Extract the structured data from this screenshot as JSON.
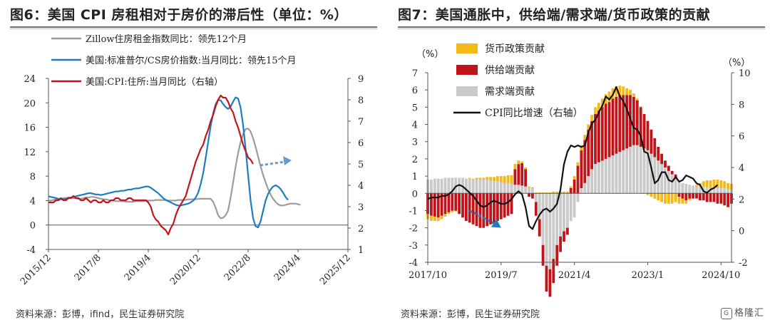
{
  "left": {
    "title": "图6：美国 CPI 房租相对于房价的滞后性（单位：%）",
    "source": "资料来源：彭博，ifind，民生证券研究院",
    "chart_data": {
      "type": "line",
      "xtick_labels": [
        "2015/12",
        "2017/8",
        "2019/4",
        "2020/12",
        "2022/8",
        "2024/4",
        "2025/12"
      ],
      "x_range": [
        "2015/12",
        "2025/12"
      ],
      "y_left": {
        "ticks": [
          -4,
          0,
          4,
          8,
          12,
          16,
          20,
          24
        ],
        "range": [
          -4,
          24
        ]
      },
      "y_right": {
        "ticks": [
          1,
          2,
          3,
          4,
          5,
          6,
          7,
          8,
          9
        ],
        "range": [
          1,
          9
        ]
      },
      "series": [
        {
          "name": "Zillow住房租金指数同比：领先12个月",
          "color": "#9c9c9c",
          "axis": "left",
          "start": "2015/12",
          "values": [
            4.0,
            4.0,
            4.1,
            4.2,
            4.3,
            4.3,
            4.4,
            4.4,
            4.5,
            4.5,
            4.4,
            4.4,
            4.3,
            4.3,
            4.4,
            4.5,
            4.5,
            4.6,
            4.6,
            4.5,
            4.4,
            4.3,
            4.2,
            4.2,
            4.1,
            4.0,
            4.0,
            3.9,
            3.9,
            3.9,
            3.9,
            3.8,
            3.8,
            3.8,
            3.8,
            3.9,
            3.9,
            3.9,
            3.9,
            4.0,
            4.0,
            4.0,
            4.0,
            4.1,
            4.1,
            4.1,
            4.1,
            4.1,
            4.0,
            4.0,
            4.0,
            4.0,
            4.1,
            4.1,
            4.1,
            4.1,
            4.2,
            4.2,
            4.2,
            4.2,
            4.3,
            4.3,
            4.3,
            4.3,
            4.3,
            4.3,
            3.8,
            2.8,
            1.6,
            1.1,
            1.2,
            1.6,
            2.4,
            4.5,
            7.0,
            9.6,
            11.8,
            13.6,
            14.9,
            15.7,
            15.8,
            15.3,
            14.2,
            12.8,
            11.2,
            9.6,
            8.2,
            7.0,
            5.9,
            5.0,
            4.3,
            3.8,
            3.4,
            3.2,
            3.2,
            3.3,
            3.4,
            3.5,
            3.5,
            3.5,
            3.4,
            3.3
          ]
        },
        {
          "name": "美国:标准普尔/CS房价指数:当月同比：领先15个月",
          "color": "#1f7bc2",
          "axis": "left",
          "start": "2015/12",
          "values": [
            4.7,
            4.6,
            4.5,
            4.4,
            4.3,
            4.2,
            4.2,
            4.3,
            4.4,
            4.5,
            4.6,
            4.7,
            4.8,
            4.9,
            5.0,
            5.1,
            5.2,
            5.2,
            5.1,
            5.0,
            5.0,
            4.9,
            5.0,
            5.1,
            5.2,
            5.3,
            5.4,
            5.5,
            5.5,
            5.6,
            5.6,
            5.7,
            5.8,
            5.8,
            5.9,
            6.0,
            6.0,
            6.1,
            6.2,
            6.3,
            6.3,
            6.1,
            5.8,
            5.5,
            5.2,
            4.8,
            4.4,
            4.1,
            3.9,
            3.7,
            3.5,
            3.3,
            3.2,
            3.2,
            3.3,
            3.4,
            3.5,
            3.7,
            4.0,
            4.5,
            5.3,
            6.7,
            8.5,
            11.0,
            13.6,
            16.2,
            18.3,
            19.8,
            20.5,
            20.4,
            19.8,
            19.3,
            19.0,
            19.4,
            20.2,
            20.9,
            20.7,
            19.2,
            16.3,
            12.5,
            8.2,
            4.0,
            1.1,
            -0.2,
            -0.4,
            0.6,
            2.3,
            4.0,
            5.1,
            5.8,
            6.3,
            6.5,
            6.3,
            5.9,
            5.3,
            4.6,
            4.1
          ]
        },
        {
          "name": "美国:CPI:住所:当月同比（右轴）",
          "color": "#c0141b",
          "axis": "right",
          "start": "2015/12",
          "values": [
            3.2,
            3.2,
            3.2,
            3.3,
            3.3,
            3.4,
            3.3,
            3.3,
            3.4,
            3.4,
            3.5,
            3.4,
            3.4,
            3.3,
            3.3,
            3.4,
            3.3,
            3.2,
            3.3,
            3.3,
            3.2,
            3.2,
            3.3,
            3.2,
            3.2,
            3.3,
            3.3,
            3.4,
            3.4,
            3.3,
            3.3,
            3.3,
            3.4,
            3.4,
            3.3,
            3.3,
            3.3,
            3.3,
            3.3,
            3.3,
            3.2,
            3.0,
            2.6,
            2.4,
            2.3,
            2.1,
            2.0,
            1.9,
            1.7,
            2.0,
            2.2,
            2.6,
            2.9,
            3.1,
            3.3,
            3.5,
            3.9,
            4.3,
            4.7,
            5.1,
            5.4,
            5.7,
            5.9,
            6.3,
            6.6,
            7.0,
            7.3,
            7.7,
            8.0,
            8.2,
            8.1,
            8.1,
            7.9,
            7.6,
            7.4,
            7.0,
            6.7,
            6.3,
            5.9,
            5.6,
            5.3,
            5.2,
            5.0
          ],
          "projection_note_color": "#6a9bd0"
        }
      ],
      "legend_position": "top-left"
    }
  },
  "right": {
    "title": "图7：美国通胀中，供给端/需求端/货币政策的贡献",
    "source": "资料来源：彭博，民生证券研究院",
    "logo_text": "格隆汇",
    "chart_data": {
      "type": "bar",
      "xtick_labels": [
        "2017/10",
        "2019/7",
        "2021/4",
        "2023/1",
        "2024/10"
      ],
      "x_range": [
        "2017/10",
        "2025/1"
      ],
      "y_left": {
        "unit_label": "（%）",
        "ticks": [
          -4,
          -3,
          -2,
          -1,
          0,
          1,
          2,
          3,
          4,
          5,
          6,
          7
        ],
        "range": [
          -4,
          7
        ]
      },
      "y_right": {
        "unit_label": "（%）",
        "ticks": [
          -2,
          0,
          2,
          4,
          6,
          8,
          10
        ],
        "range": [
          -2,
          10
        ]
      },
      "legend": [
        {
          "name": "货币政策贡献",
          "color": "#f4b914",
          "kind": "box"
        },
        {
          "name": "供给端贡献",
          "color": "#c0141b",
          "kind": "box"
        },
        {
          "name": "需求端贡献",
          "color": "#c9c9c9",
          "kind": "box"
        },
        {
          "name": "CPI同比增速（右轴）",
          "color": "#111111",
          "kind": "line"
        }
      ],
      "start": "2017/10",
      "demand": [
        0.8,
        0.8,
        0.85,
        0.85,
        0.85,
        0.9,
        0.9,
        0.9,
        0.9,
        0.9,
        0.9,
        0.85,
        0.85,
        0.8,
        0.8,
        0.8,
        0.8,
        0.8,
        0.75,
        0.7,
        0.7,
        0.65,
        0.6,
        0.6,
        0.55,
        0.5,
        0.5,
        0.45,
        0.4,
        0.35,
        0.3,
        -0.5,
        -1.5,
        -3.0,
        -4.2,
        -4.4,
        -3.8,
        -3.0,
        -2.5,
        -2.2,
        -2.0,
        -1.6,
        -1.4,
        -0.5,
        0.3,
        0.6,
        1.0,
        1.4,
        1.7,
        1.8,
        1.9,
        2.0,
        2.1,
        2.2,
        2.3,
        2.4,
        2.5,
        2.6,
        2.7,
        2.8,
        2.8,
        2.7,
        2.6,
        2.5,
        2.3,
        2.1,
        1.9,
        1.7,
        1.5,
        1.3,
        1.1,
        0.9,
        0.75,
        0.6,
        0.55,
        0.5,
        0.45,
        0.4,
        0.4,
        0.4,
        0.35,
        0.3,
        0.3,
        0.3,
        0.3,
        0.3,
        0.25,
        0.25
      ],
      "supply": [
        -1.2,
        -1.3,
        -1.35,
        -1.4,
        -1.3,
        -1.2,
        -1.1,
        -1.0,
        -1.0,
        -1.2,
        -1.4,
        -1.6,
        -1.7,
        -1.8,
        -1.9,
        -2.0,
        -2.0,
        -1.9,
        -1.8,
        -1.7,
        -1.6,
        -1.5,
        -1.4,
        -1.3,
        -1.2,
        0.9,
        1.2,
        1.3,
        1.0,
        -0.2,
        -0.3,
        -0.8,
        -1.0,
        -1.2,
        -1.5,
        -1.6,
        -1.4,
        -1.2,
        -0.9,
        -0.6,
        -0.4,
        0.3,
        0.8,
        1.6,
        2.2,
        2.5,
        2.7,
        2.8,
        2.9,
        3.0,
        3.1,
        3.2,
        3.2,
        3.3,
        3.3,
        3.3,
        3.2,
        3.1,
        3.0,
        2.8,
        2.6,
        2.3,
        2.0,
        1.7,
        1.4,
        1.1,
        0.8,
        0.6,
        0.4,
        0.3,
        0.2,
        0.2,
        -0.2,
        -0.3,
        -0.4,
        -0.3,
        -0.3,
        -0.3,
        -0.4,
        -0.4,
        -0.5,
        -0.5,
        -0.5,
        -0.6,
        -0.6,
        -0.7,
        -0.8,
        -0.6
      ],
      "monetary": [
        -0.3,
        -0.3,
        -0.25,
        -0.2,
        -0.2,
        -0.15,
        -0.1,
        -0.1,
        -0.05,
        0.0,
        0.0,
        0.0,
        0.05,
        0.05,
        0.1,
        0.1,
        0.1,
        0.15,
        0.2,
        0.25,
        0.3,
        0.35,
        0.4,
        0.45,
        0.5,
        0.3,
        0.2,
        0.1,
        0.1,
        0.05,
        0.05,
        0.05,
        0.05,
        0.05,
        0.05,
        0.05,
        0.1,
        0.1,
        0.1,
        0.1,
        0.1,
        0.1,
        0.2,
        0.2,
        0.3,
        0.3,
        0.3,
        0.35,
        0.4,
        0.45,
        0.5,
        0.55,
        0.6,
        0.6,
        0.6,
        0.55,
        0.5,
        0.4,
        0.3,
        0.2,
        0.1,
        0.05,
        0.0,
        -0.1,
        -0.2,
        -0.3,
        -0.4,
        -0.5,
        -0.6,
        -0.6,
        -0.6,
        -0.5,
        -0.4,
        -0.3,
        -0.2,
        -0.1,
        0.0,
        0.1,
        0.2,
        0.3,
        0.4,
        0.45,
        0.5,
        0.5,
        0.45,
        0.4,
        0.35,
        0.3
      ],
      "cpi": [
        2.0,
        2.1,
        2.1,
        2.1,
        2.2,
        2.2,
        2.3,
        2.5,
        2.8,
        2.9,
        2.8,
        2.6,
        2.4,
        2.2,
        1.9,
        1.6,
        1.5,
        1.6,
        1.8,
        1.9,
        1.8,
        1.7,
        1.7,
        1.8,
        2.0,
        2.3,
        2.5,
        2.3,
        1.5,
        0.3,
        0.1,
        0.6,
        1.0,
        1.3,
        1.4,
        1.2,
        1.4,
        1.7,
        2.6,
        4.2,
        5.0,
        5.4,
        5.3,
        5.4,
        5.3,
        5.4,
        6.2,
        6.8,
        7.0,
        7.5,
        7.9,
        8.5,
        8.3,
        8.6,
        9.1,
        8.5,
        8.2,
        7.7,
        7.1,
        6.5,
        6.4,
        6.0,
        5.0,
        4.9,
        4.0,
        3.0,
        3.2,
        3.7,
        3.7,
        3.2,
        3.1,
        3.4,
        3.1,
        3.2,
        3.5,
        3.4,
        3.3,
        3.0,
        2.9,
        2.5,
        2.4,
        2.6,
        2.7,
        2.9
      ]
    }
  }
}
